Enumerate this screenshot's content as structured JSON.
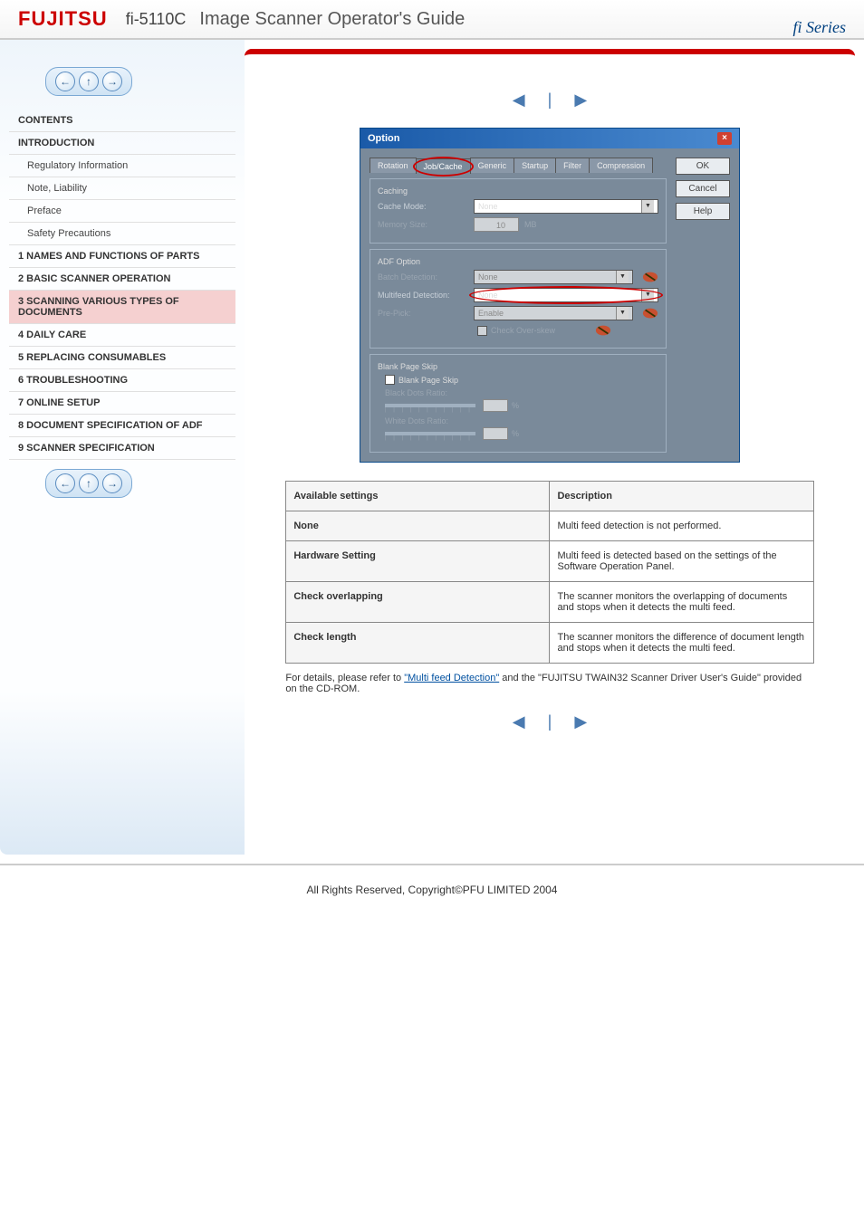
{
  "header": {
    "logo": "FUJITSU",
    "model": "fi-5110C",
    "title": "Image Scanner Operator's Guide",
    "series": "fi Series"
  },
  "nav": {
    "back": "←",
    "up": "↑",
    "forward": "→"
  },
  "toc": {
    "items": [
      {
        "label": "CONTENTS",
        "type": "chapter"
      },
      {
        "label": "INTRODUCTION",
        "type": "chapter"
      },
      {
        "label": "Regulatory Information",
        "type": "sub"
      },
      {
        "label": "Note, Liability",
        "type": "sub"
      },
      {
        "label": "Preface",
        "type": "sub"
      },
      {
        "label": "Safety Precautions",
        "type": "sub"
      },
      {
        "label": "1 NAMES AND FUNCTIONS OF PARTS",
        "type": "chapter"
      },
      {
        "label": "2 BASIC SCANNER OPERATION",
        "type": "chapter"
      },
      {
        "label": "3 SCANNING VARIOUS TYPES OF DOCUMENTS",
        "type": "chapter"
      },
      {
        "label": "4 DAILY CARE",
        "type": "chapter"
      },
      {
        "label": "5 REPLACING CONSUMABLES",
        "type": "chapter"
      },
      {
        "label": "6 TROUBLESHOOTING",
        "type": "chapter"
      },
      {
        "label": "7 ONLINE SETUP",
        "type": "chapter"
      },
      {
        "label": "8 DOCUMENT SPECIFICATION OF ADF",
        "type": "chapter"
      },
      {
        "label": "9 SCANNER SPECIFICATION",
        "type": "chapter"
      }
    ],
    "active_index": 8
  },
  "pager": {
    "prev": "◀",
    "divider": "|",
    "next": "▶"
  },
  "dialog": {
    "title": "Option",
    "buttons": {
      "ok": "OK",
      "cancel": "Cancel",
      "help": "Help"
    },
    "tabs": [
      "Rotation",
      "Job/Cache",
      "Generic",
      "Startup",
      "Filter",
      "Compression"
    ],
    "active_tab": 1,
    "caching": {
      "legend": "Caching",
      "cache_mode_label": "Cache Mode:",
      "cache_mode_value": "None",
      "memory_size_label": "Memory Size:",
      "memory_size_value": "10",
      "memory_size_unit": "MB"
    },
    "adf": {
      "legend": "ADF Option",
      "batch_label": "Batch Detection:",
      "batch_value": "None",
      "multifeed_label": "Multifeed Detection:",
      "multifeed_value": "None",
      "prepick_label": "Pre-Pick:",
      "prepick_value": "Enable",
      "overskew_label": "Check Over-skew"
    },
    "blank": {
      "legend": "Blank Page Skip",
      "skip_label": "Blank Page Skip",
      "black_label": "Black Dots Ratio:",
      "white_label": "White Dots Ratio:",
      "pct": "%"
    }
  },
  "table": {
    "headers": [
      "Available settings",
      "Description"
    ],
    "rows": [
      [
        "None",
        "Multi feed detection is not performed."
      ],
      [
        "Hardware Setting",
        "Multi feed is detected based on the settings of the Software Operation Panel."
      ],
      [
        "Check overlapping",
        "The scanner monitors the overlapping of documents and stops when it detects the multi feed."
      ],
      [
        "Check length",
        "The scanner monitors the difference of document length and stops when it detects the multi feed."
      ]
    ]
  },
  "note": {
    "text_before": "For details, please refer to ",
    "link": "\"Multi feed Detection\"",
    "text_after": " and the \"FUJITSU TWAIN32 Scanner Driver User's Guide\" provided on the CD-ROM."
  },
  "footer": "All Rights Reserved, Copyright©PFU LIMITED 2004"
}
